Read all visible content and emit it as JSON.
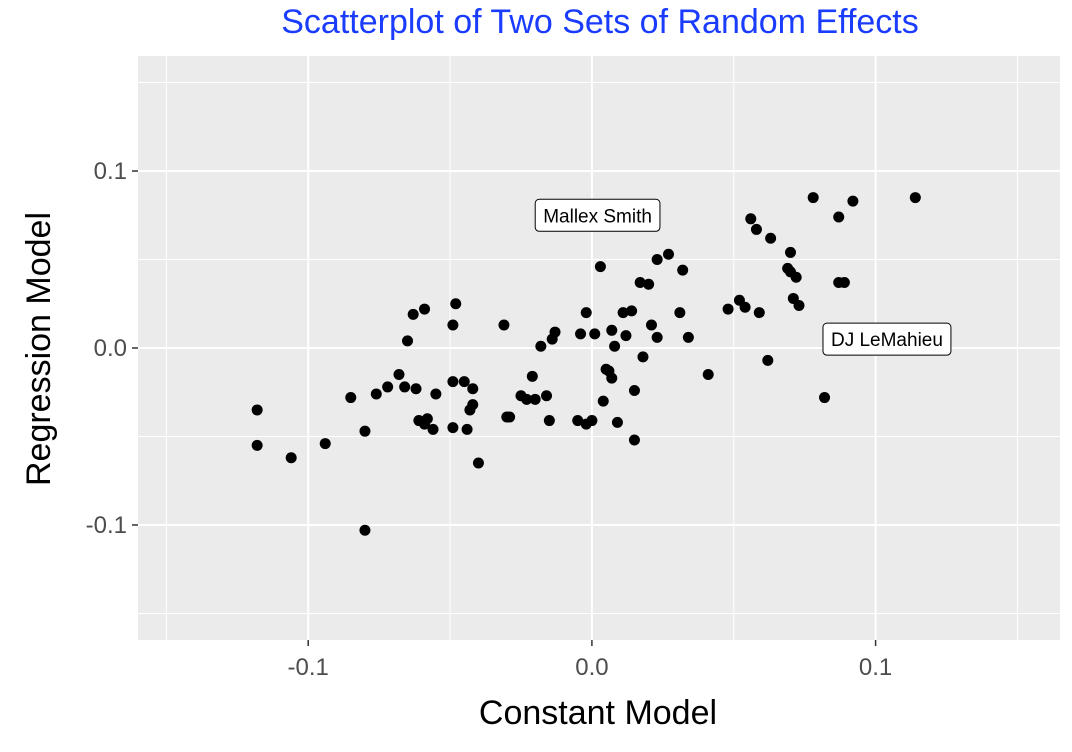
{
  "chart_data": {
    "type": "scatter",
    "title": "Scatterplot of Two Sets of Random Effects",
    "title_color": "#1a3cff",
    "xlabel": "Constant Model",
    "ylabel": "Regression Model",
    "xlim": [
      -0.16,
      0.165
    ],
    "ylim": [
      -0.165,
      0.165
    ],
    "x_ticks": [
      {
        "value": -0.1,
        "label": "-0.1"
      },
      {
        "value": 0.0,
        "label": "0.0"
      },
      {
        "value": 0.1,
        "label": "0.1"
      }
    ],
    "y_ticks": [
      {
        "value": -0.1,
        "label": "-0.1"
      },
      {
        "value": 0.0,
        "label": "0.0"
      },
      {
        "value": 0.1,
        "label": "0.1"
      }
    ],
    "x_minor": [
      -0.15,
      -0.05,
      0.05,
      0.15
    ],
    "y_minor": [
      -0.15,
      -0.05,
      0.05,
      0.15
    ],
    "grid": true,
    "panel_color": "#ebebeb",
    "grid_color": "#ffffff",
    "point_color": "#000000",
    "annotations": [
      {
        "text": "Mallex Smith",
        "x": 0.002,
        "y": 0.075
      },
      {
        "text": "DJ LeMahieu",
        "x": 0.104,
        "y": 0.005
      }
    ],
    "points": [
      [
        -0.118,
        -0.035
      ],
      [
        -0.118,
        -0.055
      ],
      [
        -0.106,
        -0.062
      ],
      [
        -0.094,
        -0.054
      ],
      [
        -0.085,
        -0.028
      ],
      [
        -0.08,
        -0.047
      ],
      [
        -0.08,
        -0.103
      ],
      [
        -0.076,
        -0.026
      ],
      [
        -0.072,
        -0.022
      ],
      [
        -0.068,
        -0.015
      ],
      [
        -0.066,
        -0.022
      ],
      [
        -0.065,
        0.004
      ],
      [
        -0.063,
        0.019
      ],
      [
        -0.062,
        -0.023
      ],
      [
        -0.061,
        -0.041
      ],
      [
        -0.059,
        0.022
      ],
      [
        -0.059,
        -0.043
      ],
      [
        -0.058,
        -0.04
      ],
      [
        -0.056,
        -0.046
      ],
      [
        -0.055,
        -0.026
      ],
      [
        -0.049,
        0.013
      ],
      [
        -0.049,
        -0.045
      ],
      [
        -0.049,
        -0.019
      ],
      [
        -0.048,
        0.025
      ],
      [
        -0.045,
        -0.019
      ],
      [
        -0.044,
        -0.046
      ],
      [
        -0.043,
        -0.035
      ],
      [
        -0.042,
        -0.032
      ],
      [
        -0.042,
        -0.023
      ],
      [
        -0.04,
        -0.065
      ],
      [
        -0.031,
        0.013
      ],
      [
        -0.03,
        -0.039
      ],
      [
        -0.029,
        -0.039
      ],
      [
        -0.025,
        -0.027
      ],
      [
        -0.023,
        -0.029
      ],
      [
        -0.021,
        -0.016
      ],
      [
        -0.02,
        -0.029
      ],
      [
        -0.018,
        0.001
      ],
      [
        -0.016,
        -0.027
      ],
      [
        -0.015,
        -0.041
      ],
      [
        -0.014,
        0.005
      ],
      [
        -0.013,
        0.009
      ],
      [
        -0.005,
        -0.041
      ],
      [
        -0.004,
        0.008
      ],
      [
        -0.002,
        -0.043
      ],
      [
        -0.002,
        0.02
      ],
      [
        0.0,
        -0.041
      ],
      [
        0.001,
        0.008
      ],
      [
        0.003,
        0.046
      ],
      [
        0.004,
        -0.03
      ],
      [
        0.005,
        -0.012
      ],
      [
        0.006,
        -0.013
      ],
      [
        0.007,
        0.01
      ],
      [
        0.007,
        -0.017
      ],
      [
        0.008,
        0.001
      ],
      [
        0.009,
        -0.042
      ],
      [
        0.011,
        0.02
      ],
      [
        0.012,
        0.007
      ],
      [
        0.014,
        0.021
      ],
      [
        0.015,
        -0.052
      ],
      [
        0.015,
        -0.024
      ],
      [
        0.017,
        0.037
      ],
      [
        0.018,
        -0.005
      ],
      [
        0.02,
        0.036
      ],
      [
        0.021,
        0.013
      ],
      [
        0.023,
        0.05
      ],
      [
        0.023,
        0.006
      ],
      [
        0.027,
        0.053
      ],
      [
        0.031,
        0.02
      ],
      [
        0.032,
        0.044
      ],
      [
        0.034,
        0.006
      ],
      [
        0.041,
        -0.015
      ],
      [
        0.048,
        0.022
      ],
      [
        0.052,
        0.027
      ],
      [
        0.054,
        0.023
      ],
      [
        0.056,
        0.073
      ],
      [
        0.058,
        0.067
      ],
      [
        0.059,
        0.02
      ],
      [
        0.062,
        -0.007
      ],
      [
        0.063,
        0.062
      ],
      [
        0.069,
        0.045
      ],
      [
        0.07,
        0.054
      ],
      [
        0.07,
        0.043
      ],
      [
        0.071,
        0.028
      ],
      [
        0.072,
        0.04
      ],
      [
        0.073,
        0.024
      ],
      [
        0.078,
        0.085
      ],
      [
        0.082,
        -0.028
      ],
      [
        0.087,
        0.037
      ],
      [
        0.087,
        0.074
      ],
      [
        0.089,
        0.037
      ],
      [
        0.092,
        0.083
      ],
      [
        0.114,
        0.085
      ]
    ]
  }
}
